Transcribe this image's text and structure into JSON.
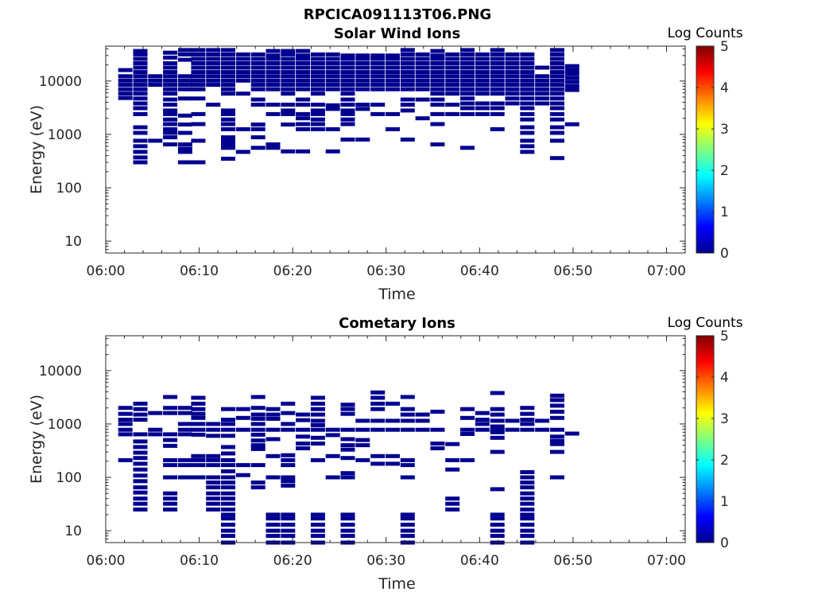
{
  "figure": {
    "title": "RPCICA091113T06.PNG"
  },
  "colormap": [
    "#00008f",
    "#0000ff",
    "#0080ff",
    "#00ffff",
    "#80ff80",
    "#ffff00",
    "#ff8000",
    "#ff0000",
    "#800000"
  ],
  "chart_data": [
    {
      "type": "heatmap",
      "title": "Solar Wind Ions",
      "xlabel": "Time",
      "ylabel": "Energy (eV)",
      "xlim": [
        "06:00",
        "07:02"
      ],
      "ylim": [
        6,
        45000
      ],
      "yscale": "log",
      "xticks": [
        "06:00",
        "06:10",
        "06:20",
        "06:30",
        "06:40",
        "06:50",
        "07:00"
      ],
      "yticks": [
        "10",
        "100",
        "1000",
        "10000"
      ],
      "colorbar": {
        "label": "Log Counts",
        "range": [
          0,
          5
        ],
        "ticks": [
          "0",
          "1",
          "2",
          "3",
          "4",
          "5"
        ]
      },
      "cell_color": "#00008f",
      "columns": [
        {
          "t": 2.1,
          "e": [
            4800,
            5800,
            7000,
            8500,
            10200,
            12300,
            16000
          ]
        },
        {
          "t": 3.7,
          "e": [
            300,
            370,
            470,
            600,
            760,
            1070,
            1360,
            2400,
            3100,
            3800,
            4700,
            5800,
            7000,
            8500,
            10200,
            12300,
            14700,
            17800,
            21500,
            26000,
            31500,
            36500
          ]
        },
        {
          "t": 5.3,
          "e": [
            760,
            8500,
            10200,
            12300
          ]
        },
        {
          "t": 6.9,
          "e": [
            650,
            880,
            1070,
            1250,
            1560,
            1900,
            2400,
            2800,
            3600,
            4500,
            5800,
            7000,
            8500,
            10200,
            12300,
            14700,
            17800,
            21500,
            27500,
            34000
          ]
        },
        {
          "t": 8.5,
          "e": [
            300,
            470,
            540,
            650,
            1070,
            1530,
            2250,
            4700,
            7000,
            8500,
            10200,
            12300,
            25000,
            31500,
            38000
          ]
        },
        {
          "t": 9.9,
          "e": [
            300,
            760,
            1560,
            2400,
            4700,
            7000,
            8500,
            10200,
            12300,
            14700,
            17800,
            21500,
            26000,
            31500,
            38000
          ]
        },
        {
          "t": 11.5,
          "e": [
            3600,
            8500,
            10200,
            12300,
            14700,
            17800,
            21500,
            26000,
            31500,
            38000
          ]
        },
        {
          "t": 13.1,
          "e": [
            350,
            560,
            650,
            760,
            880,
            1250,
            1560,
            1900,
            2400,
            2800,
            5800,
            7000,
            8500,
            10200,
            12300,
            14700,
            17800,
            21500,
            26000,
            31500,
            38000
          ]
        },
        {
          "t": 14.7,
          "e": [
            470,
            1250,
            5800,
            10200,
            12300,
            14700,
            17800,
            21500,
            26000,
            31500
          ]
        },
        {
          "t": 16.3,
          "e": [
            560,
            880,
            1250,
            1530,
            3600,
            4500,
            7000,
            8500,
            10200,
            12300,
            14700,
            17800,
            21500,
            26000,
            31500
          ]
        },
        {
          "t": 17.9,
          "e": [
            560,
            650,
            2400,
            3600,
            7000,
            8500,
            10200,
            12300,
            14700,
            17800,
            21500,
            26000,
            30000,
            36500
          ]
        },
        {
          "t": 19.5,
          "e": [
            480,
            1530,
            2400,
            2800,
            3600,
            5800,
            7000,
            8500,
            10200,
            12300,
            14700,
            17800,
            21500,
            26000,
            31500,
            36500
          ]
        },
        {
          "t": 21.1,
          "e": [
            480,
            1250,
            1560,
            2000,
            2400,
            3600,
            4500,
            7000,
            8500,
            10200,
            12300,
            14700,
            17800,
            21500,
            26000,
            30000,
            36500
          ]
        },
        {
          "t": 22.7,
          "e": [
            1250,
            1560,
            1900,
            2400,
            2800,
            3600,
            5800,
            7000,
            8500,
            10200,
            12300,
            14700,
            17800,
            21500,
            26000,
            31500
          ]
        },
        {
          "t": 24.3,
          "e": [
            480,
            1250,
            3000,
            3500,
            7000,
            8500,
            10200,
            12300,
            14700,
            17800,
            21500,
            26000,
            31500
          ]
        },
        {
          "t": 25.9,
          "e": [
            800,
            1560,
            1900,
            2400,
            2800,
            3600,
            4500,
            5800,
            7000,
            8500,
            10200,
            12300,
            14700,
            17800,
            21500,
            26000,
            30000
          ]
        },
        {
          "t": 27.5,
          "e": [
            800,
            3000,
            3600,
            7000,
            8500,
            10200,
            12300,
            14700,
            17800,
            21500,
            26000,
            30000
          ]
        },
        {
          "t": 29.1,
          "e": [
            2400,
            3600,
            7000,
            8500,
            10200,
            12300,
            14700,
            17800,
            21500,
            26000,
            30000
          ]
        },
        {
          "t": 30.7,
          "e": [
            1250,
            2400,
            7000,
            8500,
            10200,
            12300,
            14700,
            17800,
            21500,
            26000,
            30000
          ]
        },
        {
          "t": 32.3,
          "e": [
            800,
            2800,
            3600,
            4500,
            7000,
            8500,
            10200,
            12300,
            14700,
            17800,
            21500,
            26000,
            31500,
            38000
          ]
        },
        {
          "t": 33.9,
          "e": [
            2000,
            4500,
            7000,
            8500,
            10200,
            12300,
            14700,
            17800,
            21500,
            26000,
            31500
          ]
        },
        {
          "t": 35.5,
          "e": [
            650,
            1560,
            2400,
            3600,
            4500,
            5800,
            7000,
            8500,
            10200,
            12300,
            14700,
            17800,
            21500,
            26000,
            30000,
            36500
          ]
        },
        {
          "t": 37.1,
          "e": [
            2400,
            3600,
            5800,
            7000,
            8500,
            10200,
            12300,
            14700,
            17800,
            21500,
            26000,
            31500
          ]
        },
        {
          "t": 38.7,
          "e": [
            560,
            2400,
            3100,
            3800,
            4700,
            5800,
            7000,
            8500,
            10200,
            12300,
            14700,
            17800,
            21500,
            26000,
            31500,
            38000
          ]
        },
        {
          "t": 40.3,
          "e": [
            2400,
            3100,
            3800,
            5800,
            7000,
            8500,
            10200,
            12300,
            14700,
            17800,
            21500,
            26000,
            31500
          ]
        },
        {
          "t": 41.9,
          "e": [
            1250,
            2400,
            3100,
            3800,
            5800,
            7000,
            8500,
            10200,
            12300,
            14700,
            17800,
            21500,
            26000,
            31500,
            38000
          ]
        },
        {
          "t": 43.5,
          "e": [
            3800,
            4700,
            5800,
            7000,
            8500,
            10200,
            12300,
            14700,
            17800,
            21500,
            26000,
            31500
          ]
        },
        {
          "t": 45.1,
          "e": [
            470,
            600,
            760,
            1070,
            1360,
            1900,
            2400,
            3100,
            3800,
            4700,
            5800,
            7000,
            8500,
            10200,
            12300,
            14700,
            17800,
            21500,
            26000,
            31500
          ]
        },
        {
          "t": 46.7,
          "e": [
            3800,
            4700,
            5800,
            7000,
            8500,
            10200,
            12300,
            17800
          ]
        },
        {
          "t": 48.3,
          "e": [
            360,
            760,
            1070,
            1360,
            1900,
            2400,
            3100,
            3800,
            4700,
            5800,
            7000,
            8500,
            10200,
            12300,
            14700,
            17800,
            21500,
            26000,
            31500,
            38000
          ]
        },
        {
          "t": 49.9,
          "e": [
            1550,
            6800,
            8000,
            9600,
            11500,
            13700,
            16000,
            19000
          ]
        }
      ]
    },
    {
      "type": "heatmap",
      "title": "Cometary Ions",
      "xlabel": "Time",
      "ylabel": "Energy (eV)",
      "xlim": [
        "06:00",
        "07:02"
      ],
      "ylim": [
        6,
        45000
      ],
      "yscale": "log",
      "xticks": [
        "06:00",
        "06:10",
        "06:20",
        "06:30",
        "06:40",
        "06:50",
        "07:00"
      ],
      "yticks": [
        "10",
        "100",
        "1000",
        "10000"
      ],
      "colorbar": {
        "label": "Log Counts",
        "range": [
          0,
          5
        ],
        "ticks": [
          "0",
          "1",
          "2",
          "3",
          "4",
          "5"
        ]
      },
      "cell_color": "#00008f",
      "columns": [
        {
          "t": 2.1,
          "e": [
            210,
            640,
            780,
            1000,
            1200,
            1550,
            2000
          ]
        },
        {
          "t": 3.7,
          "e": [
            25,
            32,
            40,
            52,
            65,
            85,
            108,
            140,
            180,
            230,
            290,
            370,
            470,
            640,
            1200,
            1500,
            1900,
            2400
          ]
        },
        {
          "t": 5.3,
          "e": [
            640,
            780,
            1600
          ]
        },
        {
          "t": 6.9,
          "e": [
            25,
            32,
            40,
            50,
            100,
            170,
            210,
            390,
            500,
            640,
            1600,
            2000,
            3200
          ]
        },
        {
          "t": 8.5,
          "e": [
            100,
            170,
            210,
            640,
            780,
            1000,
            1600,
            2000
          ]
        },
        {
          "t": 9.9,
          "e": [
            100,
            170,
            210,
            250,
            630,
            780,
            1000,
            1300,
            1550,
            1900,
            2400,
            3100
          ]
        },
        {
          "t": 11.5,
          "e": [
            25,
            32,
            40,
            50,
            65,
            80,
            100,
            170,
            210,
            250,
            600,
            780,
            1000
          ]
        },
        {
          "t": 13.1,
          "e": [
            6,
            8,
            10,
            13,
            17,
            20,
            25,
            32,
            40,
            50,
            65,
            80,
            100,
            130,
            170,
            210,
            280,
            370,
            600,
            780,
            1000,
            1200,
            1900
          ]
        },
        {
          "t": 14.7,
          "e": [
            110,
            170,
            780,
            1300,
            1900
          ]
        },
        {
          "t": 16.3,
          "e": [
            65,
            80,
            170,
            340,
            400,
            490,
            630,
            780,
            1000,
            1250,
            1500,
            2000,
            3200
          ]
        },
        {
          "t": 17.9,
          "e": [
            6,
            8,
            10,
            13,
            17,
            20,
            100,
            250,
            520,
            780,
            1250,
            1500,
            1900
          ]
        },
        {
          "t": 19.5,
          "e": [
            6,
            8,
            10,
            13,
            17,
            20,
            70,
            85,
            100,
            170,
            210,
            260,
            780,
            1000,
            1600,
            2400
          ]
        },
        {
          "t": 21.1,
          "e": [
            350,
            430,
            580,
            780,
            1180,
            1500
          ]
        },
        {
          "t": 22.7,
          "e": [
            6,
            8,
            10,
            13,
            17,
            20,
            210,
            430,
            550,
            780,
            950,
            1150,
            1500,
            1900,
            2400,
            3100
          ]
        },
        {
          "t": 24.3,
          "e": [
            100,
            250,
            620,
            780
          ]
        },
        {
          "t": 25.9,
          "e": [
            6,
            8,
            10,
            13,
            17,
            20,
            100,
            120,
            230,
            330,
            400,
            520,
            780,
            1550,
            1900,
            2300
          ]
        },
        {
          "t": 27.5,
          "e": [
            210,
            400,
            500,
            780,
            1150
          ]
        },
        {
          "t": 29.1,
          "e": [
            180,
            250,
            780,
            1150,
            1900,
            2400,
            3100,
            3900
          ]
        },
        {
          "t": 30.7,
          "e": [
            180,
            250,
            780,
            1150,
            2400
          ]
        },
        {
          "t": 32.3,
          "e": [
            6,
            8,
            10,
            13,
            17,
            20,
            100,
            170,
            210,
            780,
            1150,
            1500,
            1900,
            3200
          ]
        },
        {
          "t": 33.9,
          "e": [
            780,
            1150,
            1500
          ]
        },
        {
          "t": 35.5,
          "e": [
            350,
            430,
            780,
            1700
          ]
        },
        {
          "t": 37.1,
          "e": [
            25,
            32,
            40,
            140,
            210,
            420
          ]
        },
        {
          "t": 38.7,
          "e": [
            210,
            650,
            780,
            1300,
            1900
          ]
        },
        {
          "t": 40.3,
          "e": [
            780,
            1000,
            1200,
            1600
          ]
        },
        {
          "t": 41.9,
          "e": [
            6,
            8,
            10,
            13,
            17,
            20,
            60,
            300,
            550,
            700,
            780,
            900,
            1150,
            1500,
            1900,
            3800
          ]
        },
        {
          "t": 43.5,
          "e": [
            780,
            1150
          ]
        },
        {
          "t": 45.1,
          "e": [
            6,
            8,
            10,
            13,
            17,
            20,
            25,
            32,
            40,
            50,
            65,
            80,
            100,
            125,
            780,
            1000,
            1200,
            1550,
            2000
          ]
        },
        {
          "t": 46.7,
          "e": [
            780,
            1150
          ]
        },
        {
          "t": 48.3,
          "e": [
            100,
            300,
            420,
            480,
            580,
            780,
            1300,
            1700,
            2200,
            2800,
            3400
          ]
        },
        {
          "t": 49.9,
          "e": [
            660
          ]
        }
      ]
    }
  ]
}
